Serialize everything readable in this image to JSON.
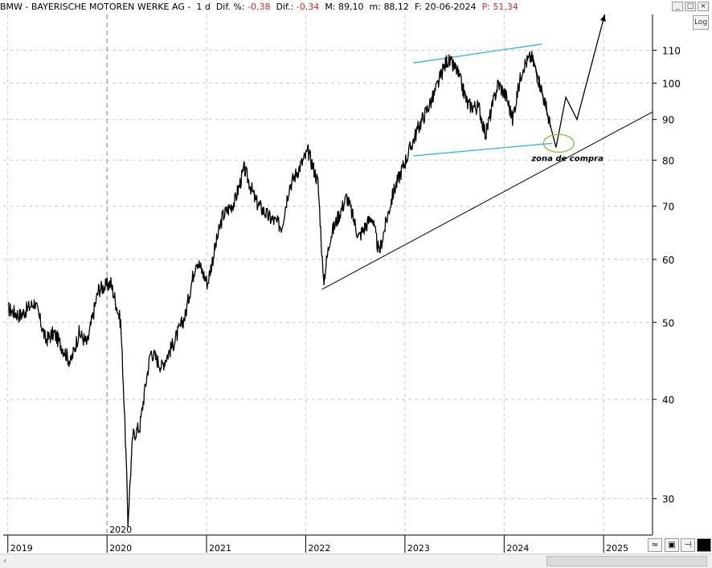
{
  "header": {
    "symbol": "BMW - BAYERISCHE MOTOREN WERKE AG -",
    "interval": "1 d",
    "dif_pct_label": "Dif. %:",
    "dif_pct_value": "-0,38",
    "dif_label": "Dif.:",
    "dif_value": "-0,34",
    "m_label": "M:",
    "m_value": "89,10",
    "m2_label": "m:",
    "m2_value": "88,12",
    "f_label": "F:",
    "f_value": "20-06-2024",
    "p_label": "P:",
    "p_value": "51,34"
  },
  "controls": {
    "log_label": "Log",
    "minimize": "_",
    "restore": "□",
    "close": "×"
  },
  "annotation": {
    "buy_zone_label": "zona de compra"
  },
  "colors": {
    "price": "#000000",
    "channel": "#19b4d8",
    "trendline": "#000000",
    "buy_zone": "#7fbf3f",
    "negative": "#d42a2a"
  },
  "chart_data": {
    "type": "line",
    "yscale": "log",
    "ylim": [
      27,
      122
    ],
    "xlim": [
      "2018-12-15",
      "2025-06-30"
    ],
    "y_ticks": [
      30,
      40,
      50,
      60,
      70,
      80,
      90,
      100,
      110
    ],
    "x_ticks": [
      "2019",
      "2020",
      "2021",
      "2022",
      "2023",
      "2024",
      "2025"
    ],
    "highlight_tick": "2020",
    "grid": true,
    "series": [
      {
        "values": [
          {
            "x": "2019-01-02",
            "y": 52
          },
          {
            "x": "2019-02-15",
            "y": 51
          },
          {
            "x": "2019-04-10",
            "y": 53
          },
          {
            "x": "2019-05-20",
            "y": 47.5
          },
          {
            "x": "2019-06-20",
            "y": 48.5
          },
          {
            "x": "2019-08-20",
            "y": 44.5
          },
          {
            "x": "2019-09-20",
            "y": 48.5
          },
          {
            "x": "2019-10-20",
            "y": 47
          },
          {
            "x": "2019-12-01",
            "y": 55
          },
          {
            "x": "2020-01-15",
            "y": 56
          },
          {
            "x": "2020-02-20",
            "y": 50
          },
          {
            "x": "2020-03-18",
            "y": 28
          },
          {
            "x": "2020-04-05",
            "y": 36
          },
          {
            "x": "2020-05-01",
            "y": 37
          },
          {
            "x": "2020-06-10",
            "y": 46
          },
          {
            "x": "2020-07-20",
            "y": 44
          },
          {
            "x": "2020-09-01",
            "y": 47
          },
          {
            "x": "2020-10-15",
            "y": 51
          },
          {
            "x": "2020-11-25",
            "y": 60
          },
          {
            "x": "2021-01-05",
            "y": 56
          },
          {
            "x": "2021-03-01",
            "y": 68
          },
          {
            "x": "2021-04-15",
            "y": 71
          },
          {
            "x": "2021-05-20",
            "y": 78
          },
          {
            "x": "2021-07-01",
            "y": 71
          },
          {
            "x": "2021-08-15",
            "y": 68
          },
          {
            "x": "2021-10-05",
            "y": 66
          },
          {
            "x": "2021-11-01",
            "y": 74
          },
          {
            "x": "2022-01-10",
            "y": 82
          },
          {
            "x": "2022-02-15",
            "y": 75
          },
          {
            "x": "2022-03-07",
            "y": 56
          },
          {
            "x": "2022-04-01",
            "y": 64
          },
          {
            "x": "2022-06-01",
            "y": 72
          },
          {
            "x": "2022-07-15",
            "y": 64
          },
          {
            "x": "2022-09-01",
            "y": 68
          },
          {
            "x": "2022-09-28",
            "y": 61
          },
          {
            "x": "2022-11-20",
            "y": 73
          },
          {
            "x": "2023-01-10",
            "y": 81
          },
          {
            "x": "2023-02-20",
            "y": 88
          },
          {
            "x": "2023-04-15",
            "y": 96
          },
          {
            "x": "2023-06-05",
            "y": 107
          },
          {
            "x": "2023-07-10",
            "y": 104
          },
          {
            "x": "2023-08-20",
            "y": 94
          },
          {
            "x": "2023-10-01",
            "y": 93
          },
          {
            "x": "2023-10-25",
            "y": 86
          },
          {
            "x": "2023-12-10",
            "y": 100
          },
          {
            "x": "2024-01-10",
            "y": 96
          },
          {
            "x": "2024-02-01",
            "y": 90
          },
          {
            "x": "2024-03-10",
            "y": 105
          },
          {
            "x": "2024-04-10",
            "y": 108
          },
          {
            "x": "2024-05-15",
            "y": 99
          },
          {
            "x": "2024-06-20",
            "y": 88
          }
        ]
      }
    ],
    "drawings": {
      "channel_upper": [
        {
          "x": "2023-02-01",
          "y": 106
        },
        {
          "x": "2024-05-20",
          "y": 112
        }
      ],
      "channel_lower": [
        {
          "x": "2023-02-01",
          "y": 81
        },
        {
          "x": "2024-06-25",
          "y": 84
        }
      ],
      "trendline": [
        {
          "x": "2022-03-01",
          "y": 55
        },
        {
          "x": "2025-06-30",
          "y": 92
        }
      ],
      "projection": [
        {
          "x": "2024-04-15",
          "y": 108
        },
        {
          "x": "2024-07-10",
          "y": 83
        },
        {
          "x": "2024-08-15",
          "y": 96
        },
        {
          "x": "2024-09-25",
          "y": 90
        },
        {
          "x": "2025-01-05",
          "y": 122
        }
      ],
      "buy_zone": {
        "x": "2024-07-20",
        "y": 84
      }
    }
  }
}
